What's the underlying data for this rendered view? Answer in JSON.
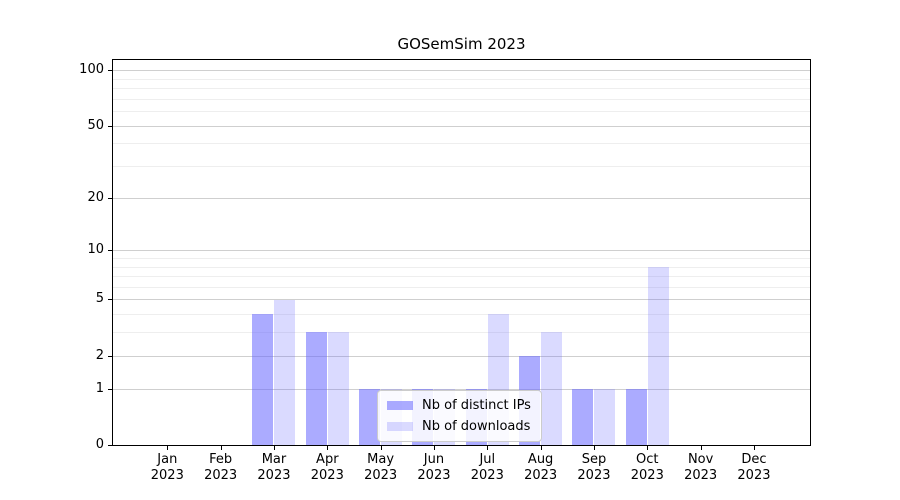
{
  "chart_data": {
    "type": "bar",
    "title": "GOSemSim 2023",
    "categories": [
      "Jan",
      "Feb",
      "Mar",
      "Apr",
      "May",
      "Jun",
      "Jul",
      "Aug",
      "Sep",
      "Oct",
      "Nov",
      "Dec"
    ],
    "year_label": "2023",
    "series": [
      {
        "name": "Nb of distinct IPs",
        "color": "#acacfa",
        "base_color": "#6666ff",
        "alpha": 0.55,
        "values": [
          0,
          0,
          4,
          3,
          1,
          1,
          1,
          2,
          1,
          1,
          0,
          0
        ]
      },
      {
        "name": "Nb of downloads",
        "color": "#dcdcfa",
        "base_color": "#6666ff",
        "alpha": 0.24,
        "values": [
          0,
          0,
          5,
          3,
          1,
          1,
          4,
          3,
          1,
          8,
          0,
          0
        ]
      }
    ],
    "yscale": "log10(1+x)",
    "ytick_values": [
      0,
      1,
      2,
      5,
      10,
      20,
      50,
      100
    ],
    "ytick_labels": [
      "0",
      "1",
      "2",
      "5",
      "10",
      "20",
      "50",
      "100"
    ],
    "minor_grid_values": [
      3,
      4,
      6,
      7,
      8,
      9,
      30,
      40,
      60,
      70,
      80,
      90
    ],
    "ylim": [
      0,
      113
    ],
    "grid": true,
    "legend_position": "lower center"
  },
  "colors": {
    "major_grid": "#cfcfcf",
    "minor_grid": "#eeeeee",
    "axis": "#000000",
    "background": "#ffffff",
    "legend_border": "#cccccc"
  }
}
